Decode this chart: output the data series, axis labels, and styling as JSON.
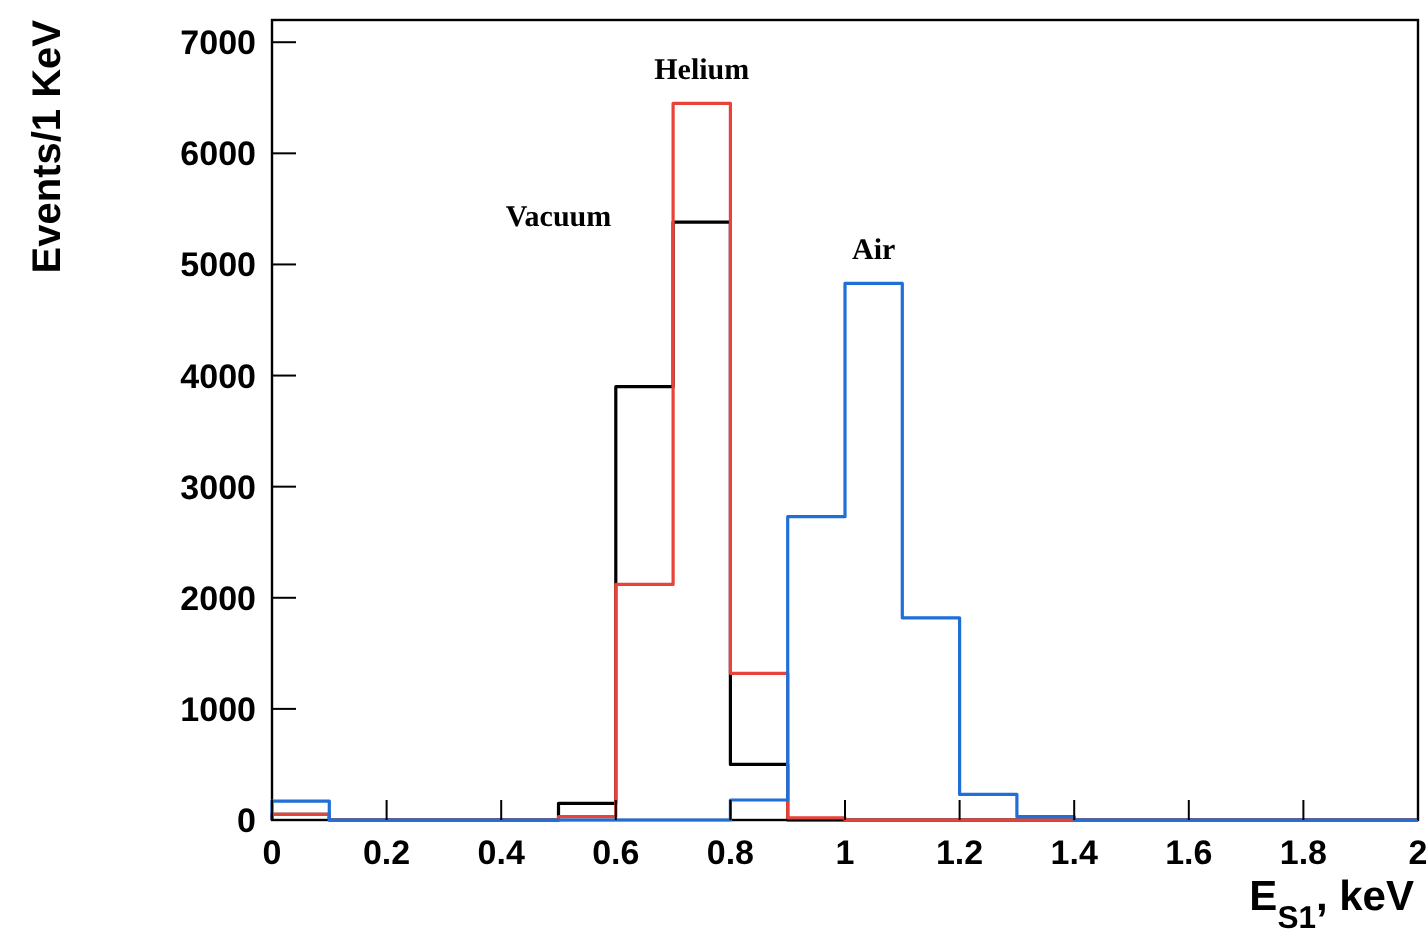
{
  "chart_data": {
    "type": "histogram",
    "xlabel": "E$_{S1}$, keV",
    "ylabel": "Events/1 KeV",
    "bins": [
      0,
      0.1,
      0.2,
      0.3,
      0.4,
      0.5,
      0.6,
      0.7,
      0.8,
      0.9,
      1.0,
      1.1,
      1.2,
      1.3,
      1.4,
      1.5,
      1.6,
      1.7,
      1.8,
      1.9,
      2.0
    ],
    "series": [
      {
        "name": "Vacuum",
        "color": "#000000",
        "values": [
          50,
          0,
          0,
          0,
          0,
          150,
          3900,
          5380,
          500,
          0,
          0,
          0,
          0,
          0,
          0,
          0,
          0,
          0,
          0,
          0
        ]
      },
      {
        "name": "Helium",
        "color": "#e8433a",
        "values": [
          50,
          0,
          0,
          0,
          0,
          30,
          2120,
          6450,
          1320,
          20,
          0,
          0,
          0,
          0,
          0,
          0,
          0,
          0,
          0,
          0
        ]
      },
      {
        "name": "Air",
        "color": "#1f6fd6",
        "values": [
          170,
          0,
          0,
          0,
          0,
          0,
          0,
          0,
          180,
          2730,
          4830,
          1820,
          230,
          30,
          0,
          0,
          0,
          0,
          0,
          0
        ]
      }
    ],
    "xlim": [
      0,
      2
    ],
    "ylim": [
      0,
      7200
    ],
    "xticks": [
      0,
      0.2,
      0.4,
      0.6,
      0.8,
      1,
      1.2,
      1.4,
      1.6,
      1.8,
      2
    ],
    "yticks": [
      0,
      1000,
      2000,
      3000,
      4000,
      5000,
      6000,
      7000
    ],
    "grid": false,
    "legend": false
  }
}
